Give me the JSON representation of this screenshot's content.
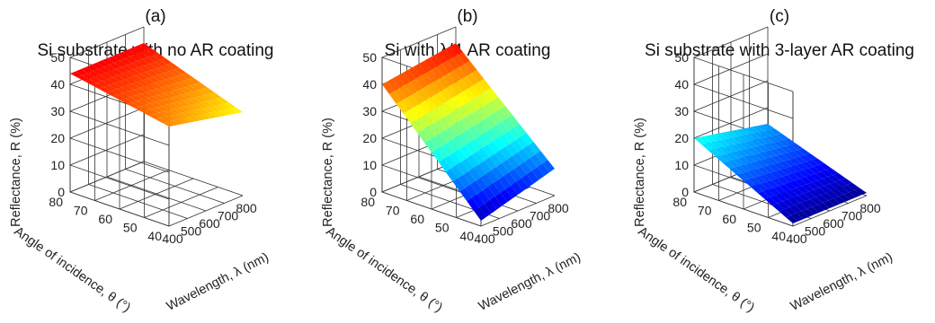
{
  "chart_data": [
    {
      "type": "surface",
      "panel_label": "(a)",
      "title": "Si substrate with no AR coating",
      "xlabel": "Wavelength, λ (nm)",
      "ylabel": "Angle of incidence, θ (°)",
      "zlabel": "Reflectance, R (%)",
      "xticks": [
        "400",
        "500",
        "600",
        "700",
        "800"
      ],
      "yticks": [
        "40",
        "50",
        "60",
        "70",
        "80"
      ],
      "zticks": [
        "0",
        "10",
        "20",
        "30",
        "40",
        "50"
      ],
      "xlim": [
        400,
        800
      ],
      "ylim": [
        40,
        80
      ],
      "zlim": [
        0,
        50
      ],
      "corner_values": {
        "lambda_400_theta_40": 37,
        "lambda_400_theta_80": 44,
        "lambda_800_theta_40": 31,
        "lambda_800_theta_80": 44
      },
      "colormap": "jet"
    },
    {
      "type": "surface",
      "panel_label": "(b)",
      "title": "Si with λ/4 AR coating",
      "xlabel": "Wavelength, λ (nm)",
      "ylabel": "Angle of incidence, θ (°)",
      "zlabel": "Reflectance, R (%)",
      "xticks": [
        "400",
        "500",
        "600",
        "700",
        "800"
      ],
      "yticks": [
        "40",
        "50",
        "60",
        "70",
        "80"
      ],
      "zticks": [
        "0",
        "10",
        "20",
        "30",
        "40",
        "50"
      ],
      "xlim": [
        400,
        800
      ],
      "ylim": [
        40,
        80
      ],
      "zlim": [
        0,
        50
      ],
      "corner_values": {
        "lambda_400_theta_40": 2,
        "lambda_400_theta_80": 40,
        "lambda_800_theta_40": 10,
        "lambda_800_theta_80": 44
      },
      "colormap": "jet"
    },
    {
      "type": "surface",
      "panel_label": "(c)",
      "title": "Si substrate with 3-layer AR coating",
      "xlabel": "Wavelength, λ (nm)",
      "ylabel": "Angle of incidence, θ (°)",
      "zlabel": "Reflectance, R (%)",
      "xticks": [
        "400",
        "500",
        "600",
        "700",
        "800"
      ],
      "yticks": [
        "40",
        "50",
        "60",
        "70",
        "80"
      ],
      "zticks": [
        "0",
        "10",
        "20",
        "30",
        "40",
        "50"
      ],
      "xlim": [
        400,
        800
      ],
      "ylim": [
        40,
        80
      ],
      "zlim": [
        0,
        50
      ],
      "corner_values": {
        "lambda_400_theta_40": 1,
        "lambda_400_theta_80": 20,
        "lambda_800_theta_40": 1,
        "lambda_800_theta_80": 14
      },
      "colormap": "jet"
    }
  ]
}
